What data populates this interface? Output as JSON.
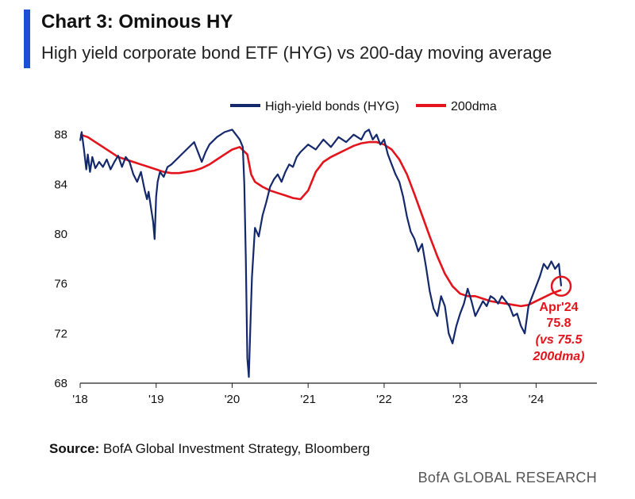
{
  "header": {
    "title": "Chart 3: Ominous HY",
    "subtitle": "High yield corporate bond ETF (HYG) vs 200-day moving average"
  },
  "colors": {
    "accent": "#1a4fd6",
    "series_hyg": "#14296b",
    "series_dma": "#e3141b",
    "annotation": "#e3141b"
  },
  "chart_data": {
    "type": "line",
    "title": "",
    "xlabel": "",
    "ylabel": "",
    "ylim": [
      68,
      89
    ],
    "xlim": [
      2018.0,
      2024.8
    ],
    "yticks": [
      68,
      72,
      76,
      80,
      84,
      88
    ],
    "xticks": [
      {
        "value": 2018.0,
        "label": "'18"
      },
      {
        "value": 2019.0,
        "label": "'19"
      },
      {
        "value": 2020.0,
        "label": "'20"
      },
      {
        "value": 2021.0,
        "label": "'21"
      },
      {
        "value": 2022.0,
        "label": "'22"
      },
      {
        "value": 2023.0,
        "label": "'23"
      },
      {
        "value": 2024.0,
        "label": "'24"
      }
    ],
    "legend_position": "top-center",
    "series": [
      {
        "name": "High-yield bonds (HYG)",
        "x": [
          2018.0,
          2018.02,
          2018.05,
          2018.08,
          2018.1,
          2018.13,
          2018.16,
          2018.2,
          2018.25,
          2018.3,
          2018.35,
          2018.4,
          2018.45,
          2018.5,
          2018.55,
          2018.6,
          2018.65,
          2018.7,
          2018.75,
          2018.8,
          2018.85,
          2018.88,
          2018.9,
          2018.93,
          2018.96,
          2018.98,
          2019.0,
          2019.02,
          2019.05,
          2019.1,
          2019.15,
          2019.2,
          2019.3,
          2019.4,
          2019.5,
          2019.6,
          2019.65,
          2019.7,
          2019.8,
          2019.9,
          2020.0,
          2020.05,
          2020.1,
          2020.14,
          2020.16,
          2020.18,
          2020.2,
          2020.22,
          2020.24,
          2020.26,
          2020.28,
          2020.3,
          2020.35,
          2020.4,
          2020.45,
          2020.5,
          2020.55,
          2020.6,
          2020.65,
          2020.7,
          2020.75,
          2020.8,
          2020.85,
          2020.9,
          2021.0,
          2021.1,
          2021.2,
          2021.3,
          2021.4,
          2021.5,
          2021.6,
          2021.7,
          2021.75,
          2021.8,
          2021.85,
          2021.9,
          2021.95,
          2022.0,
          2022.05,
          2022.1,
          2022.15,
          2022.2,
          2022.25,
          2022.3,
          2022.35,
          2022.4,
          2022.45,
          2022.5,
          2022.55,
          2022.6,
          2022.65,
          2022.7,
          2022.75,
          2022.8,
          2022.85,
          2022.9,
          2022.95,
          2023.0,
          2023.05,
          2023.1,
          2023.15,
          2023.2,
          2023.25,
          2023.3,
          2023.35,
          2023.4,
          2023.45,
          2023.5,
          2023.55,
          2023.6,
          2023.65,
          2023.7,
          2023.75,
          2023.8,
          2023.85,
          2023.9,
          2023.95,
          2024.0,
          2024.05,
          2024.1,
          2024.15,
          2024.2,
          2024.25,
          2024.3,
          2024.33
        ],
        "values": [
          87.5,
          88.2,
          86.8,
          85.2,
          86.4,
          85.0,
          86.2,
          85.3,
          85.8,
          85.4,
          86.0,
          85.2,
          85.8,
          86.3,
          85.4,
          86.2,
          85.8,
          84.8,
          84.2,
          85.0,
          83.5,
          82.8,
          83.4,
          82.2,
          81.0,
          79.6,
          83.0,
          84.2,
          85.0,
          84.6,
          85.4,
          85.6,
          86.2,
          86.8,
          87.4,
          85.8,
          86.6,
          87.2,
          87.8,
          88.2,
          88.4,
          88.0,
          87.6,
          87.0,
          84.0,
          78.0,
          70.0,
          68.5,
          72.5,
          76.5,
          78.5,
          80.5,
          79.8,
          81.5,
          82.6,
          83.8,
          84.4,
          84.8,
          84.2,
          85.0,
          85.6,
          85.4,
          86.2,
          86.6,
          87.2,
          86.8,
          87.6,
          87.0,
          87.8,
          87.4,
          88.0,
          87.6,
          88.2,
          88.4,
          87.6,
          88.0,
          87.2,
          87.6,
          86.4,
          85.6,
          84.8,
          84.2,
          83.0,
          81.4,
          80.2,
          79.6,
          78.6,
          79.2,
          77.4,
          75.4,
          74.0,
          73.4,
          75.0,
          74.2,
          72.0,
          71.2,
          72.6,
          73.6,
          74.4,
          75.6,
          74.6,
          73.4,
          74.0,
          74.6,
          74.2,
          75.0,
          74.8,
          74.4,
          75.0,
          74.6,
          74.2,
          73.4,
          73.6,
          72.6,
          72.0,
          74.2,
          75.0,
          75.8,
          76.6,
          77.6,
          77.2,
          77.8,
          77.2,
          77.6,
          75.8
        ]
      },
      {
        "name": "200dma",
        "x": [
          2018.0,
          2018.1,
          2018.2,
          2018.3,
          2018.4,
          2018.5,
          2018.6,
          2018.7,
          2018.8,
          2018.9,
          2019.0,
          2019.1,
          2019.2,
          2019.3,
          2019.4,
          2019.5,
          2019.6,
          2019.7,
          2019.8,
          2019.9,
          2020.0,
          2020.1,
          2020.2,
          2020.25,
          2020.3,
          2020.4,
          2020.5,
          2020.6,
          2020.7,
          2020.8,
          2020.9,
          2021.0,
          2021.1,
          2021.2,
          2021.3,
          2021.4,
          2021.5,
          2021.6,
          2021.7,
          2021.8,
          2021.9,
          2022.0,
          2022.1,
          2022.2,
          2022.3,
          2022.4,
          2022.5,
          2022.6,
          2022.7,
          2022.8,
          2022.9,
          2023.0,
          2023.1,
          2023.2,
          2023.3,
          2023.4,
          2023.5,
          2023.6,
          2023.7,
          2023.8,
          2023.9,
          2024.0,
          2024.1,
          2024.2,
          2024.33
        ],
        "values": [
          88.0,
          87.8,
          87.4,
          87.0,
          86.6,
          86.2,
          86.0,
          85.8,
          85.6,
          85.4,
          85.2,
          85.0,
          84.9,
          84.9,
          85.0,
          85.1,
          85.3,
          85.6,
          86.0,
          86.4,
          86.8,
          87.0,
          86.4,
          84.8,
          84.2,
          83.8,
          83.5,
          83.3,
          83.1,
          82.9,
          82.8,
          83.5,
          85.0,
          85.8,
          86.2,
          86.5,
          86.8,
          87.1,
          87.3,
          87.4,
          87.4,
          87.2,
          86.8,
          86.0,
          84.8,
          83.2,
          81.5,
          79.8,
          78.2,
          76.8,
          75.8,
          75.2,
          75.0,
          75.0,
          74.8,
          74.6,
          74.5,
          74.4,
          74.3,
          74.2,
          74.3,
          74.6,
          74.9,
          75.2,
          75.5
        ]
      }
    ],
    "annotation": {
      "lines": [
        "Apr'24",
        "75.8",
        "(vs 75.5",
        "200dma)"
      ],
      "point": {
        "x": 2024.33,
        "y": 75.8
      }
    }
  },
  "footer": {
    "source_label": "Source:",
    "source_text": " BofA Global Investment Strategy, Bloomberg",
    "brand": "BofA GLOBAL RESEARCH"
  }
}
